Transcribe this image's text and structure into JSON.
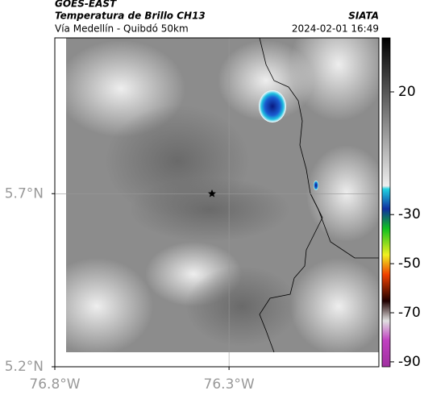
{
  "header": {
    "source": "GOES-EAST",
    "product": "Temperatura de Brillo CH13",
    "region": "Vía Medellín - Quibdó 50km",
    "agency": "SIATA",
    "datetime": "2024-02-01 16:49"
  },
  "map": {
    "lonlim": [
      -76.8,
      -75.87
    ],
    "latlim": [
      5.2,
      6.15
    ],
    "lonticks": [
      {
        "value": -76.8,
        "label": "76.8°W"
      },
      {
        "value": -76.3,
        "label": "76.3°W"
      }
    ],
    "latticks": [
      {
        "value": 5.7,
        "label": "5.7°N"
      },
      {
        "value": 5.2,
        "label": "5.2°N"
      }
    ]
  },
  "colorbar": {
    "clim": [
      -92,
      42
    ],
    "ticks": [
      20,
      -30,
      -50,
      -70,
      -90
    ]
  }
}
